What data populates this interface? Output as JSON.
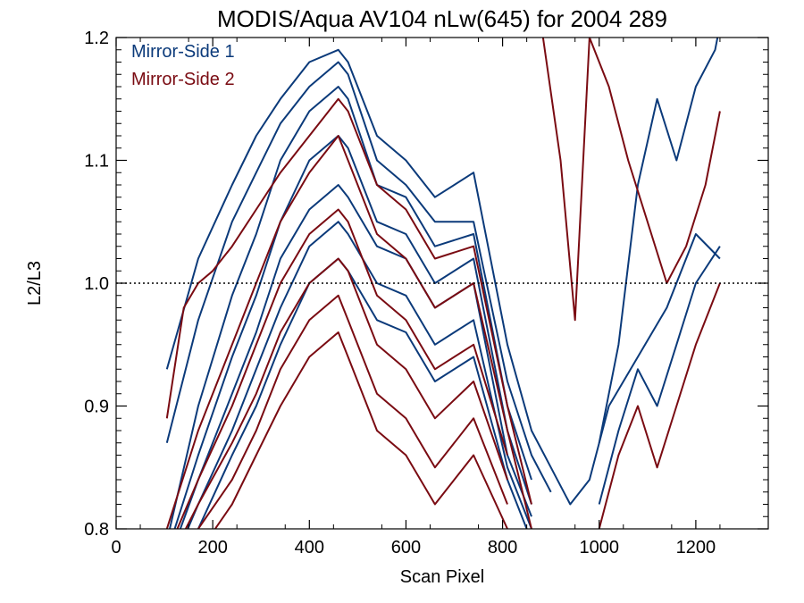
{
  "chart_data": {
    "type": "line",
    "title": "MODIS/Aqua AV104 nLw(645) for 2004 289",
    "xlabel": "Scan Pixel",
    "ylabel": "L2/L3",
    "xlim": [
      0,
      1350
    ],
    "ylim": [
      0.8,
      1.2
    ],
    "x_ticks": [
      0,
      200,
      400,
      600,
      800,
      1000,
      1200
    ],
    "y_ticks": [
      0.8,
      0.9,
      1.0,
      1.1,
      1.2
    ],
    "x_tick_labels": [
      "0",
      "200",
      "400",
      "600",
      "800",
      "1000",
      "1200"
    ],
    "y_tick_labels": [
      "0.8",
      "0.9",
      "1.0",
      "1.1",
      "1.2"
    ],
    "reference_line": {
      "y": 1.0,
      "style": "dotted"
    },
    "legend": {
      "position": "top-left",
      "entries": [
        "Mirror-Side 1",
        "Mirror-Side 2"
      ]
    },
    "colors": {
      "Mirror-Side 1": "#0b3a7a",
      "Mirror-Side 2": "#7a0b12"
    },
    "grid": false,
    "series": [
      {
        "group": "Mirror-Side 1",
        "x": [
          105,
          170,
          240,
          290,
          340,
          400,
          460,
          480,
          540,
          600,
          660,
          740,
          810,
          860,
          900,
          940,
          980,
          1020,
          1080,
          1140,
          1200,
          1250
        ],
        "y": [
          0.93,
          1.02,
          1.08,
          1.12,
          1.15,
          1.18,
          1.19,
          1.18,
          1.12,
          1.1,
          1.07,
          1.09,
          0.95,
          0.88,
          0.85,
          0.82,
          0.84,
          0.9,
          0.94,
          0.98,
          1.04,
          1.02
        ]
      },
      {
        "group": "Mirror-Side 1",
        "x": [
          105,
          170,
          240,
          290,
          340,
          400,
          460,
          480,
          540,
          600,
          660,
          740,
          810,
          860,
          900
        ],
        "y": [
          0.87,
          0.97,
          1.05,
          1.09,
          1.13,
          1.16,
          1.18,
          1.17,
          1.1,
          1.08,
          1.05,
          1.05,
          0.92,
          0.86,
          0.83
        ]
      },
      {
        "group": "Mirror-Side 1",
        "x": [
          105,
          170,
          240,
          290,
          340,
          400,
          460,
          480,
          540,
          600,
          660,
          740,
          810,
          860
        ],
        "y": [
          0.79,
          0.9,
          0.99,
          1.04,
          1.1,
          1.14,
          1.16,
          1.15,
          1.08,
          1.07,
          1.03,
          1.04,
          0.9,
          0.84
        ]
      },
      {
        "group": "Mirror-Side 1",
        "x": [
          105,
          170,
          240,
          290,
          340,
          400,
          460,
          480,
          540,
          600,
          660,
          740,
          810,
          860
        ],
        "y": [
          0.78,
          0.86,
          0.94,
          0.99,
          1.05,
          1.1,
          1.12,
          1.11,
          1.05,
          1.04,
          1.0,
          1.02,
          0.88,
          0.82
        ]
      },
      {
        "group": "Mirror-Side 1",
        "x": [
          105,
          170,
          240,
          290,
          340,
          400,
          460,
          480,
          540,
          600,
          660,
          740,
          810,
          860
        ],
        "y": [
          0.77,
          0.84,
          0.91,
          0.96,
          1.02,
          1.06,
          1.08,
          1.07,
          1.03,
          1.02,
          0.98,
          1.0,
          0.86,
          0.81
        ]
      },
      {
        "group": "Mirror-Side 1",
        "x": [
          105,
          170,
          240,
          290,
          340,
          400,
          460,
          480,
          540,
          600,
          660,
          740,
          810,
          860
        ],
        "y": [
          0.76,
          0.82,
          0.88,
          0.93,
          0.98,
          1.03,
          1.05,
          1.04,
          1.0,
          0.99,
          0.95,
          0.97,
          0.85,
          0.8
        ]
      },
      {
        "group": "Mirror-Side 1",
        "x": [
          105,
          170,
          240,
          290,
          340,
          400,
          460,
          480,
          540,
          600,
          660,
          740,
          810,
          860
        ],
        "y": [
          0.75,
          0.8,
          0.86,
          0.9,
          0.95,
          1.0,
          1.02,
          1.01,
          0.97,
          0.96,
          0.92,
          0.94,
          0.84,
          0.79
        ]
      },
      {
        "group": "Mirror-Side 1",
        "x": [
          1000,
          1040,
          1080,
          1120,
          1160,
          1200,
          1240,
          1250
        ],
        "y": [
          0.87,
          0.95,
          1.08,
          1.15,
          1.1,
          1.16,
          1.19,
          1.21
        ]
      },
      {
        "group": "Mirror-Side 1",
        "x": [
          1000,
          1040,
          1080,
          1120,
          1160,
          1200,
          1250
        ],
        "y": [
          0.82,
          0.88,
          0.93,
          0.9,
          0.95,
          1.0,
          1.03
        ]
      },
      {
        "group": "Mirror-Side 2",
        "x": [
          105,
          140,
          170,
          200,
          240,
          290,
          340,
          400,
          460,
          480,
          540,
          600,
          660,
          740,
          810,
          860
        ],
        "y": [
          0.89,
          0.98,
          1.0,
          1.01,
          1.03,
          1.06,
          1.09,
          1.12,
          1.15,
          1.14,
          1.08,
          1.06,
          1.02,
          1.03,
          0.9,
          0.82
        ]
      },
      {
        "group": "Mirror-Side 2",
        "x": [
          105,
          170,
          240,
          290,
          340,
          400,
          460,
          480,
          540,
          600,
          660,
          740,
          810,
          860
        ],
        "y": [
          0.8,
          0.88,
          0.95,
          1.0,
          1.05,
          1.09,
          1.12,
          1.1,
          1.04,
          1.02,
          0.98,
          1.0,
          0.88,
          0.8
        ]
      },
      {
        "group": "Mirror-Side 2",
        "x": [
          105,
          170,
          240,
          290,
          340,
          400,
          460,
          480,
          540,
          600,
          660,
          740,
          810
        ],
        "y": [
          0.78,
          0.84,
          0.9,
          0.95,
          1.0,
          1.04,
          1.06,
          1.05,
          0.99,
          0.97,
          0.93,
          0.95,
          0.86
        ]
      },
      {
        "group": "Mirror-Side 2",
        "x": [
          105,
          170,
          240,
          290,
          340,
          400,
          460,
          480,
          540,
          600,
          660,
          740,
          810
        ],
        "y": [
          0.77,
          0.82,
          0.87,
          0.91,
          0.96,
          1.0,
          1.02,
          1.01,
          0.95,
          0.93,
          0.89,
          0.92,
          0.84
        ]
      },
      {
        "group": "Mirror-Side 2",
        "x": [
          105,
          170,
          240,
          290,
          340,
          400,
          460,
          480,
          540,
          600,
          660,
          740,
          810
        ],
        "y": [
          0.76,
          0.8,
          0.84,
          0.88,
          0.93,
          0.97,
          0.99,
          0.97,
          0.91,
          0.89,
          0.85,
          0.89,
          0.82
        ]
      },
      {
        "group": "Mirror-Side 2",
        "x": [
          105,
          170,
          240,
          290,
          340,
          400,
          460,
          480,
          540,
          600,
          660,
          740,
          810
        ],
        "y": [
          0.75,
          0.78,
          0.82,
          0.86,
          0.9,
          0.94,
          0.96,
          0.94,
          0.88,
          0.86,
          0.82,
          0.86,
          0.8
        ]
      },
      {
        "group": "Mirror-Side 2",
        "x": [
          880,
          920,
          950,
          980,
          1020,
          1060,
          1100,
          1140,
          1180,
          1220,
          1250
        ],
        "y": [
          1.21,
          1.1,
          0.97,
          1.2,
          1.16,
          1.1,
          1.05,
          1.0,
          1.03,
          1.08,
          1.14
        ]
      },
      {
        "group": "Mirror-Side 2",
        "x": [
          1000,
          1040,
          1080,
          1120,
          1160,
          1200,
          1250
        ],
        "y": [
          0.8,
          0.86,
          0.9,
          0.85,
          0.9,
          0.95,
          1.0
        ]
      }
    ]
  }
}
